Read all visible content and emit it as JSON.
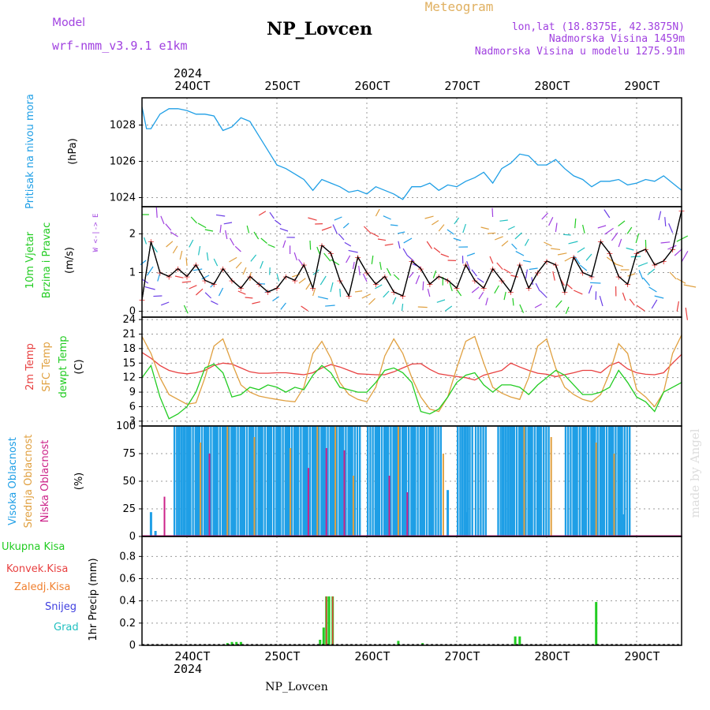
{
  "header": {
    "title": "NP_Lovcen",
    "model_label": "Model",
    "model_value": "wrf-nmm_v3.9.1 e1km",
    "product": "Meteogram",
    "lonlat": "lon,lat (18.8375E, 42.3875N)",
    "altitude": "Nadmorska Visina 1459m",
    "model_altitude": "Nadmorska Visina u modelu 1275.91m"
  },
  "footer": {
    "station": "NP_Lovcen",
    "watermark": "made by Angel"
  },
  "colors": {
    "pressure": "#1f9fe6",
    "wind_label": "#22cc22",
    "direction_key": "#a040e0",
    "temp2m": "#e84040",
    "sfc_temp": "#e0a040",
    "dewpoint": "#22cc22",
    "cloud_high": "#1f9fe6",
    "cloud_mid": "#e0a040",
    "cloud_low": "#cc2288",
    "precip_total": "#22cc22",
    "precip_conv": "#e84040",
    "precip_frz": "#f08030",
    "snow": "#4040e0",
    "hail": "#20c0c0",
    "header_purple": "#a040e0",
    "header_orange": "#e0b060",
    "grid": "#999999"
  },
  "time_axis": {
    "year": "2024",
    "ticks": [
      "24OCT",
      "25OCT",
      "26OCT",
      "27OCT",
      "28OCT",
      "29OCT"
    ]
  },
  "chart_data": [
    {
      "type": "line",
      "panel": "pressure",
      "ylabel": "(hPa)",
      "side_label": "Pritisak na nivou mora",
      "yticks": [
        "1024",
        "1026",
        "1028"
      ],
      "ylim": [
        1023.5,
        1029.5
      ],
      "series": [
        {
          "name": "Pritisak na nivou mora",
          "x": [
            23.5,
            23.55,
            23.6,
            23.7,
            23.8,
            23.9,
            24.0,
            24.1,
            24.2,
            24.3,
            24.4,
            24.5,
            24.6,
            24.7,
            24.8,
            24.9,
            25.0,
            25.1,
            25.2,
            25.3,
            25.4,
            25.5,
            25.6,
            25.7,
            25.8,
            25.9,
            26.0,
            26.1,
            26.2,
            26.3,
            26.4,
            26.5,
            26.6,
            26.7,
            26.8,
            26.9,
            27.0,
            27.1,
            27.2,
            27.3,
            27.4,
            27.5,
            27.6,
            27.7,
            27.8,
            27.9,
            28.0,
            28.1,
            28.2,
            28.3,
            28.4,
            28.5,
            28.6,
            28.7,
            28.8,
            28.9,
            29.0,
            29.1,
            29.2,
            29.3,
            29.4,
            29.5
          ],
          "values": [
            1029.0,
            1027.8,
            1027.8,
            1028.6,
            1028.9,
            1028.9,
            1028.8,
            1028.6,
            1028.6,
            1028.5,
            1027.7,
            1027.9,
            1028.4,
            1028.2,
            1027.4,
            1026.6,
            1025.8,
            1025.6,
            1025.3,
            1025.0,
            1024.4,
            1025.0,
            1024.8,
            1024.6,
            1024.3,
            1024.4,
            1024.2,
            1024.6,
            1024.4,
            1024.2,
            1023.9,
            1024.6,
            1024.6,
            1024.8,
            1024.4,
            1024.7,
            1024.6,
            1024.9,
            1025.1,
            1025.4,
            1024.8,
            1025.6,
            1025.9,
            1026.4,
            1026.3,
            1025.8,
            1025.8,
            1026.1,
            1025.6,
            1025.2,
            1025.0,
            1024.6,
            1024.9,
            1024.9,
            1025.0,
            1024.7,
            1024.8,
            1025.0,
            1024.9,
            1025.2,
            1024.8,
            1024.4
          ]
        }
      ]
    },
    {
      "type": "line",
      "panel": "wind",
      "ylabel": "(m/s)",
      "side_label_1": "10m Vjetar",
      "side_label_2": "Brzina i Pravac",
      "direction_key": "W <-|-> E",
      "direction_n": "N",
      "direction_s": "S",
      "yticks": [
        "0",
        "1",
        "2"
      ],
      "ylim": [
        -0.15,
        2.7
      ],
      "series": [
        {
          "name": "speed",
          "x": [
            23.5,
            23.6,
            23.7,
            23.8,
            23.9,
            24.0,
            24.1,
            24.2,
            24.3,
            24.4,
            24.5,
            24.6,
            24.7,
            24.8,
            24.9,
            25.0,
            25.1,
            25.2,
            25.3,
            25.4,
            25.5,
            25.6,
            25.7,
            25.8,
            25.9,
            26.0,
            26.1,
            26.2,
            26.3,
            26.4,
            26.5,
            26.6,
            26.7,
            26.8,
            26.9,
            27.0,
            27.1,
            27.2,
            27.3,
            27.4,
            27.5,
            27.6,
            27.7,
            27.8,
            27.9,
            28.0,
            28.1,
            28.2,
            28.3,
            28.4,
            28.5,
            28.6,
            28.7,
            28.8,
            28.9,
            29.0,
            29.1,
            29.2,
            29.3,
            29.4,
            29.5
          ],
          "values": [
            0.3,
            1.8,
            1.0,
            0.9,
            1.1,
            0.9,
            1.2,
            0.8,
            0.7,
            1.1,
            0.8,
            0.6,
            0.9,
            0.7,
            0.5,
            0.6,
            0.9,
            0.8,
            1.2,
            0.6,
            1.7,
            1.5,
            0.8,
            0.4,
            1.4,
            1.0,
            0.7,
            0.9,
            0.5,
            0.4,
            1.3,
            1.1,
            0.7,
            0.9,
            0.8,
            0.6,
            1.2,
            0.8,
            0.6,
            1.1,
            0.8,
            0.5,
            1.2,
            0.6,
            1.0,
            1.3,
            1.2,
            0.5,
            1.4,
            1.0,
            0.9,
            1.8,
            1.5,
            0.9,
            0.7,
            1.5,
            1.6,
            1.2,
            1.3,
            1.6,
            2.6
          ]
        }
      ]
    },
    {
      "type": "line",
      "panel": "temperature",
      "ylabel": "(C)",
      "side_label_1": "2m Temp",
      "side_label_2": "SFC Temp",
      "side_label_3": "dewpt Temp",
      "yticks": [
        "3",
        "6",
        "9",
        "12",
        "15",
        "18",
        "21",
        "24"
      ],
      "ylim": [
        2,
        24.5
      ],
      "series": [
        {
          "name": "2m Temp",
          "x": [
            23.5,
            23.6,
            23.7,
            23.8,
            23.9,
            24.0,
            24.1,
            24.2,
            24.3,
            24.4,
            24.5,
            24.6,
            24.7,
            24.8,
            24.9,
            25.0,
            25.1,
            25.2,
            25.3,
            25.4,
            25.5,
            25.6,
            25.7,
            25.8,
            25.9,
            26.0,
            26.1,
            26.2,
            26.3,
            26.4,
            26.5,
            26.6,
            26.7,
            26.8,
            26.9,
            27.0,
            27.1,
            27.2,
            27.3,
            27.4,
            27.5,
            27.6,
            27.7,
            27.8,
            27.9,
            28.0,
            28.1,
            28.2,
            28.3,
            28.4,
            28.5,
            28.6,
            28.7,
            28.8,
            28.9,
            29.0,
            29.1,
            29.2,
            29.3,
            29.4,
            29.5
          ],
          "values": [
            17.2,
            16.0,
            14.5,
            13.5,
            13.0,
            12.8,
            13.0,
            13.5,
            14.5,
            15.0,
            14.8,
            14.0,
            13.2,
            12.9,
            12.9,
            13.0,
            13.0,
            12.8,
            12.6,
            13.0,
            14.0,
            14.7,
            14.2,
            13.5,
            12.8,
            12.7,
            12.6,
            12.6,
            13.2,
            14.0,
            14.8,
            14.9,
            13.7,
            12.8,
            12.5,
            12.2,
            12.0,
            11.5,
            12.5,
            13.0,
            13.5,
            15.0,
            14.2,
            13.5,
            12.9,
            12.7,
            12.2,
            12.6,
            13.0,
            13.5,
            13.5,
            13.0,
            14.5,
            15.2,
            13.8,
            13.0,
            12.7,
            12.6,
            13.0,
            15.0,
            16.8
          ]
        },
        {
          "name": "SFC Temp",
          "x": [
            23.5,
            23.6,
            23.7,
            23.8,
            23.9,
            24.0,
            24.1,
            24.2,
            24.3,
            24.4,
            24.5,
            24.6,
            24.7,
            24.8,
            24.9,
            25.0,
            25.1,
            25.2,
            25.3,
            25.4,
            25.5,
            25.6,
            25.7,
            25.8,
            25.9,
            26.0,
            26.1,
            26.2,
            26.3,
            26.4,
            26.5,
            26.6,
            26.7,
            26.8,
            26.9,
            27.0,
            27.1,
            27.2,
            27.3,
            27.4,
            27.5,
            27.6,
            27.7,
            27.8,
            27.9,
            28.0,
            28.1,
            28.2,
            28.3,
            28.4,
            28.5,
            28.6,
            28.7,
            28.8,
            28.9,
            29.0,
            29.1,
            29.2,
            29.3,
            29.4,
            29.5
          ],
          "values": [
            20.5,
            17.0,
            12.0,
            8.5,
            7.5,
            6.5,
            6.8,
            12.0,
            18.5,
            20.0,
            15.0,
            10.5,
            9.0,
            8.2,
            7.8,
            7.5,
            7.2,
            7.0,
            10.0,
            17.0,
            19.5,
            16.0,
            11.0,
            8.5,
            7.5,
            7.0,
            10.0,
            16.5,
            20.0,
            17.0,
            12.0,
            8.0,
            5.5,
            5.0,
            8.0,
            14.0,
            19.5,
            20.5,
            15.0,
            10.0,
            8.8,
            8.0,
            7.5,
            12.0,
            18.5,
            20.0,
            14.0,
            10.0,
            8.5,
            7.5,
            7.0,
            8.5,
            13.0,
            19.0,
            17.0,
            9.5,
            8.0,
            6.0,
            9.0,
            17.0,
            20.8
          ]
        },
        {
          "name": "dewpt Temp",
          "x": [
            23.5,
            23.6,
            23.7,
            23.8,
            23.9,
            24.0,
            24.1,
            24.2,
            24.3,
            24.4,
            24.5,
            24.6,
            24.7,
            24.8,
            24.9,
            25.0,
            25.1,
            25.2,
            25.3,
            25.4,
            25.5,
            25.6,
            25.7,
            25.8,
            25.9,
            26.0,
            26.1,
            26.2,
            26.3,
            26.4,
            26.5,
            26.6,
            26.7,
            26.8,
            26.9,
            27.0,
            27.1,
            27.2,
            27.3,
            27.4,
            27.5,
            27.6,
            27.7,
            27.8,
            27.9,
            28.0,
            28.1,
            28.2,
            28.3,
            28.4,
            28.5,
            28.6,
            28.7,
            28.8,
            28.9,
            29.0,
            29.1,
            29.2,
            29.3,
            29.4,
            29.5
          ],
          "values": [
            12.0,
            14.5,
            8.0,
            3.5,
            4.5,
            6.0,
            9.0,
            14.0,
            14.8,
            13.0,
            8.0,
            8.5,
            10.0,
            9.5,
            10.5,
            10.0,
            9.0,
            10.0,
            9.5,
            12.5,
            14.5,
            13.0,
            10.0,
            9.5,
            9.0,
            9.0,
            11.0,
            13.5,
            14.0,
            13.0,
            11.0,
            5.0,
            4.5,
            5.5,
            8.0,
            11.0,
            12.5,
            13.0,
            10.5,
            9.0,
            10.5,
            10.5,
            10.0,
            8.5,
            10.5,
            12.0,
            13.5,
            12.5,
            10.5,
            8.5,
            8.5,
            9.0,
            10.0,
            13.5,
            11.0,
            8.0,
            7.0,
            5.0,
            9.0,
            10.0,
            11.0
          ]
        }
      ]
    },
    {
      "type": "bar",
      "panel": "cloud",
      "ylabel": "(%)",
      "side_label_1": "Visoka Oblacnost",
      "side_label_2": "Srednja Oblacnost",
      "side_label_3": "Niska Oblacnost",
      "yticks": [
        "0",
        "25",
        "50",
        "75",
        "100"
      ],
      "ylim": [
        0,
        100
      ],
      "series": [
        {
          "name": "Visoka Oblacnost",
          "x": [
            23.6,
            23.65,
            23.85,
            23.9,
            24.0,
            24.1,
            24.2,
            24.3,
            24.4,
            24.5,
            24.6,
            24.7,
            24.8,
            24.9,
            25.0,
            25.1,
            25.2,
            25.3,
            25.4,
            25.5,
            25.6,
            25.7,
            25.8,
            26.0,
            26.1,
            26.2,
            26.3,
            26.4,
            26.5,
            26.6,
            26.7,
            26.9,
            27.0,
            27.05,
            27.1,
            27.2,
            27.45,
            27.5,
            27.6,
            27.7,
            27.8,
            27.9,
            28.2,
            28.3,
            28.4,
            28.5,
            28.6,
            28.7,
            28.8,
            28.85
          ],
          "values": [
            22,
            5,
            100,
            100,
            100,
            100,
            100,
            100,
            100,
            100,
            100,
            100,
            100,
            100,
            100,
            100,
            100,
            100,
            100,
            100,
            100,
            100,
            100,
            100,
            100,
            100,
            100,
            100,
            100,
            100,
            100,
            42,
            100,
            100,
            22,
            100,
            100,
            100,
            100,
            100,
            100,
            100,
            100,
            100,
            100,
            100,
            100,
            100,
            100,
            20
          ]
        },
        {
          "name": "Srednja Oblacnost",
          "x": [
            24.15,
            24.45,
            24.75,
            25.15,
            25.45,
            25.65,
            25.85,
            26.35,
            26.85,
            27.75,
            28.05,
            28.55,
            28.75
          ],
          "values": [
            85,
            100,
            90,
            80,
            100,
            100,
            55,
            100,
            75,
            100,
            90,
            85,
            75
          ]
        },
        {
          "name": "Niska Oblacnost",
          "x": [
            23.75,
            24.25,
            25.35,
            25.55,
            25.75,
            26.25,
            26.45
          ],
          "values": [
            36,
            75,
            62,
            80,
            78,
            55,
            40
          ]
        }
      ]
    },
    {
      "type": "bar",
      "panel": "precip",
      "ylabel": "1hr Precip (mm)",
      "legend": [
        "Ukupna Kisa",
        "Konvek.Kisa",
        "Zaledj.Kisa",
        "Snijeg",
        "Grad"
      ],
      "yticks": [
        "0",
        "0.2",
        "0.4",
        "0.6",
        "0.8"
      ],
      "ylim": [
        0,
        0.98
      ],
      "series": [
        {
          "name": "Ukupna Kisa",
          "x": [
            24.45,
            24.5,
            24.55,
            24.6,
            25.48,
            25.52,
            25.55,
            25.58,
            25.62,
            26.35,
            26.62,
            27.65,
            27.7,
            28.55
          ],
          "values": [
            0.02,
            0.03,
            0.03,
            0.03,
            0.05,
            0.16,
            0.44,
            0.44,
            0.44,
            0.04,
            0.02,
            0.08,
            0.08,
            0.39
          ]
        },
        {
          "name": "Konvek.Kisa",
          "x": [
            25.55,
            25.62
          ],
          "values": [
            0.44,
            0.44
          ]
        }
      ]
    }
  ]
}
